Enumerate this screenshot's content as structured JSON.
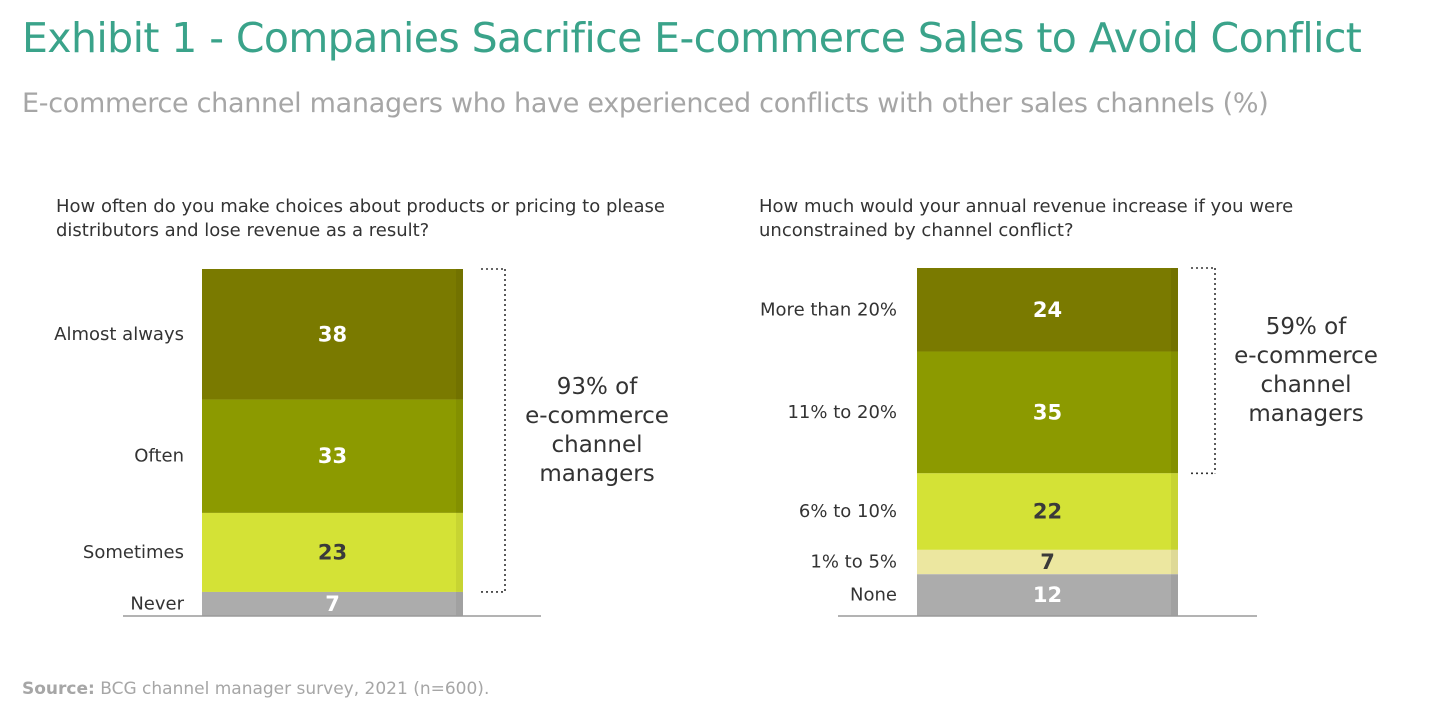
{
  "header": {
    "title": "Exhibit 1 - Companies Sacrifice E-commerce Sales to Avoid Conflict",
    "subtitle": "E-commerce channel managers who have experienced conflicts with other sales channels (%)"
  },
  "footer": {
    "source_label": "Source:",
    "source_text": "BCG channel manager survey, 2021 (n=600)."
  },
  "colors": {
    "title": "#3aa38a",
    "dark_olive": "#7a7a00",
    "olive": "#8c9a00",
    "lime": "#d4e236",
    "pale": "#ece7a0",
    "gray": "#acacac"
  },
  "chart_data": [
    {
      "type": "bar",
      "stacked": true,
      "title": "How often do you make choices about products or pricing to please distributors and lose revenue as a result?",
      "categories": [
        "Almost always",
        "Often",
        "Sometimes",
        "Never"
      ],
      "values": [
        38,
        33,
        23,
        7
      ],
      "colors": [
        "#7a7a00",
        "#8c9a00",
        "#d4e236",
        "#acacac"
      ],
      "value_text_colors": [
        "#ffffff",
        "#ffffff",
        "#3a3a3a",
        "#ffffff"
      ],
      "bracket": {
        "covers": [
          "Almost always",
          "Often",
          "Sometimes"
        ],
        "lines": [
          "93% of",
          "e-commerce",
          "channel",
          "managers"
        ]
      }
    },
    {
      "type": "bar",
      "stacked": true,
      "title": "How much would your annual revenue increase if you were unconstrained by channel conflict?",
      "categories": [
        "More than 20%",
        "11% to 20%",
        "6% to 10%",
        "1% to 5%",
        "None"
      ],
      "values": [
        24,
        35,
        22,
        7,
        12
      ],
      "colors": [
        "#7a7a00",
        "#8c9a00",
        "#d4e236",
        "#ece7a0",
        "#acacac"
      ],
      "value_text_colors": [
        "#ffffff",
        "#ffffff",
        "#3a3a3a",
        "#3a3a3a",
        "#ffffff"
      ],
      "bracket": {
        "covers": [
          "More than 20%",
          "11% to 20%"
        ],
        "lines": [
          "59% of",
          "e-commerce",
          "channel",
          "managers"
        ]
      }
    }
  ]
}
